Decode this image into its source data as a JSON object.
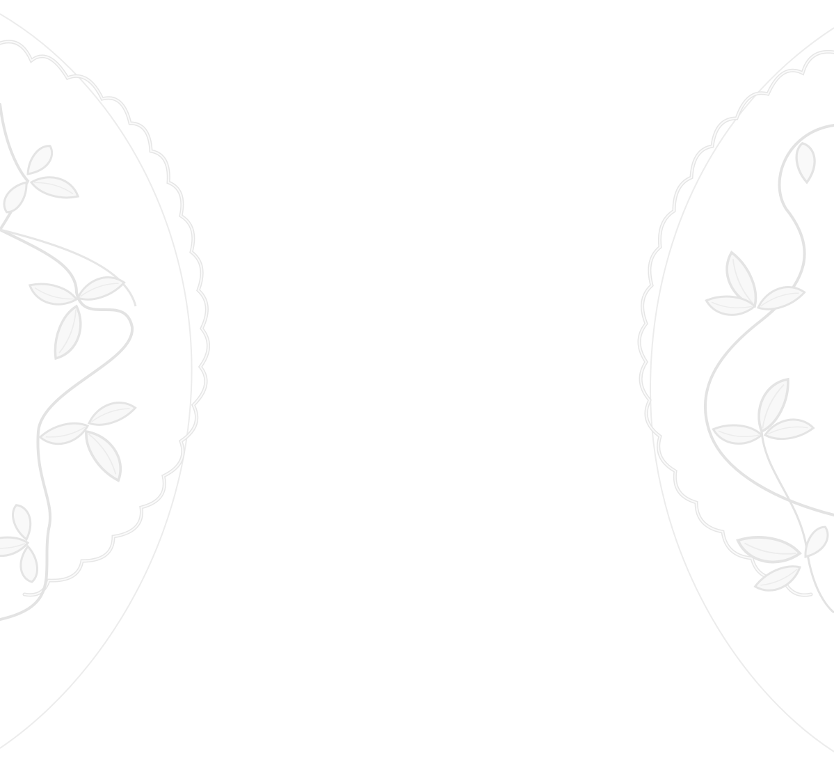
{
  "page": {
    "background_color": "#ffffff",
    "ornament_color": "#e6e6e6",
    "ornament_fill": "#f7f7f7",
    "icons": [
      "floral-vine-ornament-left",
      "floral-vine-ornament-right"
    ]
  }
}
